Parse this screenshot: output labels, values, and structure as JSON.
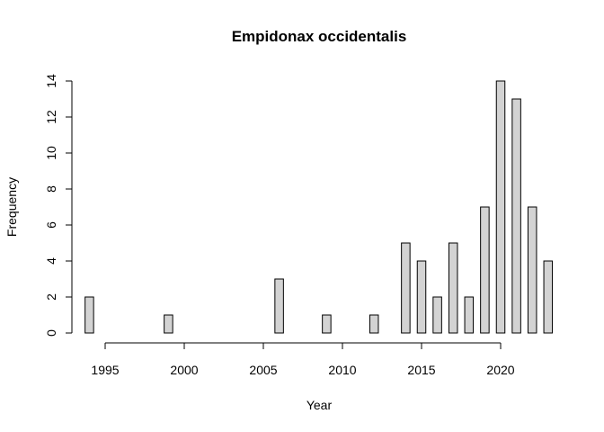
{
  "chart_data": {
    "type": "bar",
    "title": "Empidonax occidentalis",
    "xlabel": "Year",
    "ylabel": "Frequency",
    "x": [
      1994,
      1995,
      1996,
      1997,
      1998,
      1999,
      2000,
      2001,
      2002,
      2003,
      2004,
      2005,
      2006,
      2007,
      2008,
      2009,
      2010,
      2011,
      2012,
      2013,
      2014,
      2015,
      2016,
      2017,
      2018,
      2019,
      2020,
      2021,
      2022,
      2023
    ],
    "values": [
      2,
      0,
      0,
      0,
      0,
      1,
      0,
      0,
      0,
      0,
      0,
      0,
      3,
      0,
      0,
      1,
      0,
      0,
      1,
      0,
      5,
      4,
      2,
      5,
      2,
      7,
      14,
      13,
      7,
      4
    ],
    "xticks": [
      "1995",
      "2000",
      "2005",
      "2010",
      "2015",
      "2020"
    ],
    "yticks": [
      "0",
      "2",
      "4",
      "6",
      "8",
      "10",
      "12",
      "14"
    ],
    "ylim": [
      0,
      14
    ],
    "grid": false,
    "bar_color": "#d3d3d3",
    "edge_color": "#000000"
  }
}
